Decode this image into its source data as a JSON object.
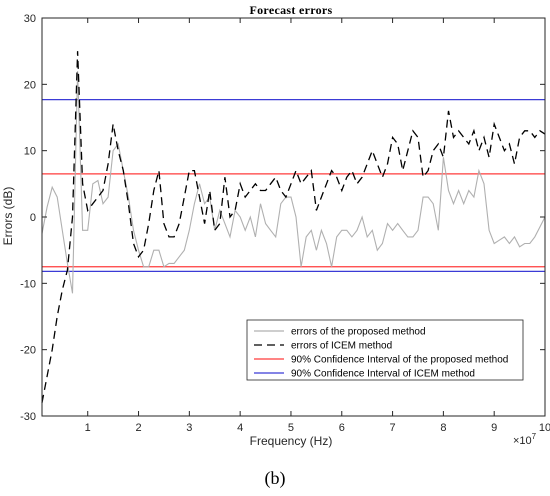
{
  "caption": "(b)",
  "chart_data": {
    "type": "line",
    "title": "Forecast errors",
    "xlabel": "Frequency (Hz)",
    "ylabel": "Errors (dB)",
    "x_exponent_label": "×10",
    "x_exponent_power": "7",
    "xlim": [
      0.1,
      10
    ],
    "ylim": [
      -30,
      30
    ],
    "xticks": [
      1,
      2,
      3,
      4,
      5,
      6,
      7,
      8,
      9,
      10
    ],
    "yticks": [
      -30,
      -20,
      -10,
      0,
      10,
      20,
      30
    ],
    "grid": false,
    "legend_position": "bottom-right",
    "series": [
      {
        "name": "errors of the proposed method",
        "style": "solid",
        "color": "#b0b0b0",
        "x": [
          0.1,
          0.2,
          0.3,
          0.4,
          0.5,
          0.6,
          0.7,
          0.8,
          0.9,
          1.0,
          1.1,
          1.2,
          1.3,
          1.4,
          1.5,
          1.6,
          1.7,
          1.8,
          1.9,
          2.0,
          2.1,
          2.2,
          2.3,
          2.4,
          2.5,
          2.6,
          2.7,
          2.8,
          2.9,
          3.0,
          3.1,
          3.2,
          3.3,
          3.4,
          3.5,
          3.6,
          3.7,
          3.8,
          3.9,
          4.0,
          4.1,
          4.2,
          4.3,
          4.4,
          4.5,
          4.6,
          4.7,
          4.8,
          4.9,
          5.0,
          5.1,
          5.2,
          5.3,
          5.4,
          5.5,
          5.6,
          5.7,
          5.8,
          5.9,
          6.0,
          6.1,
          6.2,
          6.3,
          6.4,
          6.5,
          6.6,
          6.7,
          6.8,
          6.9,
          7.0,
          7.1,
          7.2,
          7.3,
          7.4,
          7.5,
          7.6,
          7.7,
          7.8,
          7.9,
          8.0,
          8.1,
          8.2,
          8.3,
          8.4,
          8.5,
          8.6,
          8.7,
          8.8,
          8.9,
          9.0,
          9.1,
          9.2,
          9.3,
          9.4,
          9.5,
          9.6,
          9.7,
          9.8,
          9.9,
          10.0
        ],
        "y": [
          -2.5,
          1.5,
          4.5,
          3,
          -2,
          -7,
          -11.5,
          22,
          -2,
          -2,
          5,
          5.5,
          2,
          3,
          10,
          11,
          7,
          3,
          -2,
          -5,
          -7.5,
          -7.5,
          -5,
          -5,
          -7.5,
          -7,
          -7,
          -6,
          -5,
          -2,
          2,
          5,
          2,
          3,
          -2,
          1,
          -1,
          -3,
          1,
          0,
          -2,
          0,
          -3,
          2,
          -1,
          -2,
          -3,
          2,
          3,
          3,
          0,
          -7.5,
          -3,
          -2,
          -5,
          -2,
          -4,
          -7.5,
          -3,
          -2,
          -2,
          -3,
          -2,
          0,
          -3,
          -2,
          -5,
          -4,
          -1,
          -2,
          -1,
          -2,
          -3,
          -3,
          -2,
          3,
          3,
          2,
          -2,
          9,
          4,
          2,
          4,
          2,
          4,
          3,
          7,
          5,
          -2,
          -4,
          -3.5,
          -3,
          -4,
          -3,
          -4.5,
          -4,
          -4,
          -3,
          -1.5,
          0
        ]
      },
      {
        "name": "errors of ICEM method",
        "style": "dashed",
        "color": "#000000",
        "x": [
          0.1,
          0.2,
          0.3,
          0.4,
          0.5,
          0.6,
          0.7,
          0.8,
          0.9,
          1.0,
          1.1,
          1.2,
          1.3,
          1.4,
          1.5,
          1.6,
          1.7,
          1.8,
          1.9,
          2.0,
          2.1,
          2.2,
          2.3,
          2.4,
          2.5,
          2.6,
          2.7,
          2.8,
          2.9,
          3.0,
          3.1,
          3.2,
          3.3,
          3.4,
          3.5,
          3.6,
          3.7,
          3.8,
          3.9,
          4.0,
          4.1,
          4.2,
          4.3,
          4.4,
          4.5,
          4.6,
          4.7,
          4.8,
          4.9,
          5.0,
          5.1,
          5.2,
          5.3,
          5.4,
          5.5,
          5.6,
          5.7,
          5.8,
          5.9,
          6.0,
          6.1,
          6.2,
          6.3,
          6.4,
          6.5,
          6.6,
          6.7,
          6.8,
          6.9,
          7.0,
          7.1,
          7.2,
          7.3,
          7.4,
          7.5,
          7.6,
          7.7,
          7.8,
          7.9,
          8.0,
          8.1,
          8.2,
          8.3,
          8.4,
          8.5,
          8.6,
          8.7,
          8.8,
          8.9,
          9.0,
          9.1,
          9.2,
          9.3,
          9.4,
          9.5,
          9.6,
          9.7,
          9.8,
          9.9,
          10.0
        ],
        "y": [
          -28,
          -24,
          -20,
          -15,
          -11,
          -8,
          0,
          25,
          5,
          1,
          2,
          3,
          4,
          8,
          14,
          10,
          7,
          2,
          -4,
          -6,
          -5,
          -1,
          4,
          7,
          -1,
          -3,
          -3,
          -1,
          3,
          7,
          7,
          3,
          -1,
          4,
          -2,
          -1,
          6,
          0,
          1,
          5,
          3,
          4,
          5,
          4,
          4,
          5,
          6,
          4,
          3,
          5,
          7,
          5,
          6,
          7,
          1,
          3,
          5,
          7,
          6,
          4,
          6,
          7,
          5,
          6,
          8,
          10,
          8,
          6,
          8,
          12,
          11,
          7,
          10,
          13,
          12,
          6,
          7,
          10,
          11,
          9,
          16,
          12,
          13,
          12,
          11,
          13,
          10,
          12,
          9,
          14,
          12,
          10,
          11,
          8,
          12,
          13,
          13,
          12,
          13,
          12.5
        ]
      }
    ],
    "reference_lines": [
      {
        "name": "90% Confidence Interval of the proposed method",
        "color": "#ff3b3b",
        "values": [
          6.5,
          -7.5
        ]
      },
      {
        "name": "90% Confidence Interval of ICEM method",
        "color": "#3b3bd6",
        "values": [
          17.7,
          -8.2
        ]
      }
    ]
  }
}
